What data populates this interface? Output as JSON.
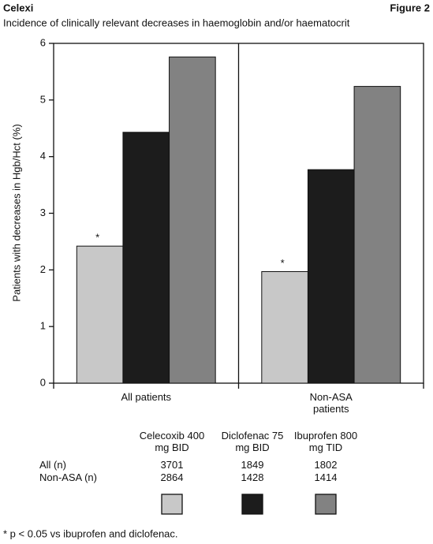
{
  "chart_data": {
    "type": "bar",
    "title": "Celexi",
    "figure_label": "Figure 2",
    "subtitle": "Incidence of clinically relevant decreases in haemoglobin and/or haematocrit",
    "y_label": "Patients with decreases in Hgb/Hct (%)",
    "categories": [
      "All patients",
      "Non-ASA patients"
    ],
    "series": [
      {
        "name": "Celecoxib 400 mg BID",
        "color": "#c8c8c8",
        "values": [
          2.42,
          1.97
        ],
        "note": "*"
      },
      {
        "name": "Diclofenac 75 mg BID",
        "color": "#1c1c1c",
        "values": [
          4.43,
          3.77
        ]
      },
      {
        "name": "Ibuprofen 800 mg TID",
        "color": "#828282",
        "values": [
          5.76,
          5.24
        ]
      }
    ],
    "ylim": [
      0,
      6
    ],
    "yticks": [
      0,
      1,
      2,
      3,
      4,
      5,
      6
    ],
    "sample_sizes": [
      {
        "label": "All (n)",
        "values": [
          3701,
          1849,
          1802
        ]
      },
      {
        "label": "Non-ASA (n)",
        "values": [
          2864,
          1428,
          1414
        ]
      }
    ],
    "footnote": "* p < 0.05 vs ibuprofen and diclofenac."
  }
}
